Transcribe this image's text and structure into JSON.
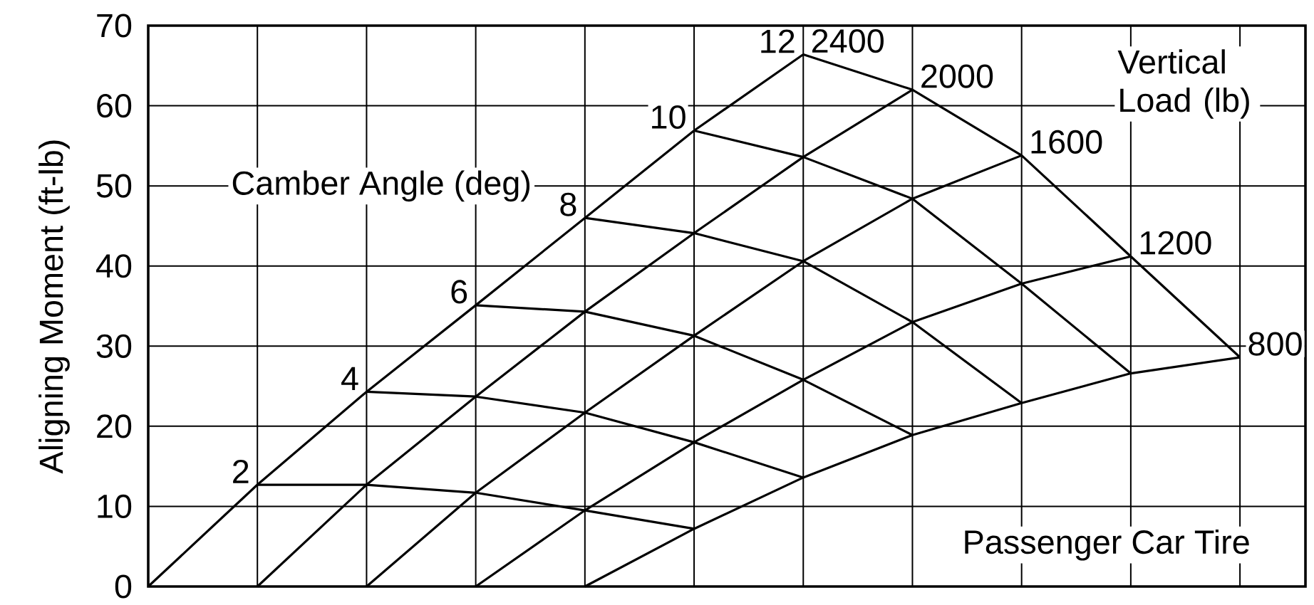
{
  "chart_data": {
    "type": "line",
    "ylabel": "Aligning Moment (ft-lb)",
    "annotations": [
      "Camber Angle (deg)",
      "Vertical Load (lb)",
      "Passenger Car Tire"
    ],
    "categories": [
      null,
      null,
      null,
      null,
      null,
      null,
      null,
      null,
      null,
      null,
      null
    ],
    "ylim": [
      0,
      70
    ],
    "yticks": [
      0,
      10,
      20,
      30,
      40,
      50,
      60,
      70
    ],
    "grid": true,
    "tick_labels": "y",
    "series": [
      {
        "name": "2400",
        "color": "#000000",
        "values": [
          0,
          12.7,
          24.3,
          35.1,
          46.0,
          56.9,
          66.4,
          null,
          null,
          null,
          null
        ]
      },
      {
        "name": "2000",
        "color": "#000000",
        "values": [
          null,
          0,
          12.7,
          23.7,
          34.3,
          44.1,
          53.6,
          62.0,
          null,
          null,
          null
        ]
      },
      {
        "name": "1600",
        "color": "#000000",
        "values": [
          null,
          null,
          0,
          11.7,
          21.7,
          31.3,
          40.6,
          48.4,
          53.8,
          null,
          null
        ]
      },
      {
        "name": "1200",
        "color": "#000000",
        "values": [
          null,
          null,
          null,
          0,
          9.5,
          18.0,
          25.8,
          33.0,
          37.8,
          41.2,
          null
        ]
      },
      {
        "name": "800",
        "color": "#000000",
        "values": [
          null,
          null,
          null,
          null,
          0,
          7.2,
          13.6,
          18.9,
          22.9,
          26.6,
          28.6
        ]
      },
      {
        "name": "2",
        "color": "#000000",
        "values": [
          null,
          12.7,
          12.7,
          11.7,
          9.5,
          7.2,
          null,
          null,
          null,
          null,
          null
        ]
      },
      {
        "name": "4",
        "color": "#000000",
        "values": [
          null,
          null,
          24.3,
          23.7,
          21.7,
          18.0,
          13.6,
          null,
          null,
          null,
          null
        ]
      },
      {
        "name": "6",
        "color": "#000000",
        "values": [
          null,
          null,
          null,
          35.1,
          34.3,
          31.3,
          25.8,
          18.9,
          null,
          null,
          null
        ]
      },
      {
        "name": "8",
        "color": "#000000",
        "values": [
          null,
          null,
          null,
          null,
          46.0,
          44.1,
          40.6,
          33.0,
          22.9,
          null,
          null
        ]
      },
      {
        "name": "10",
        "color": "#000000",
        "values": [
          null,
          null,
          null,
          null,
          null,
          56.9,
          53.6,
          48.4,
          37.8,
          26.6,
          null
        ]
      },
      {
        "name": "12",
        "color": "#000000",
        "values": [
          null,
          null,
          null,
          null,
          null,
          null,
          66.4,
          62.0,
          53.8,
          41.2,
          28.6
        ]
      }
    ]
  }
}
